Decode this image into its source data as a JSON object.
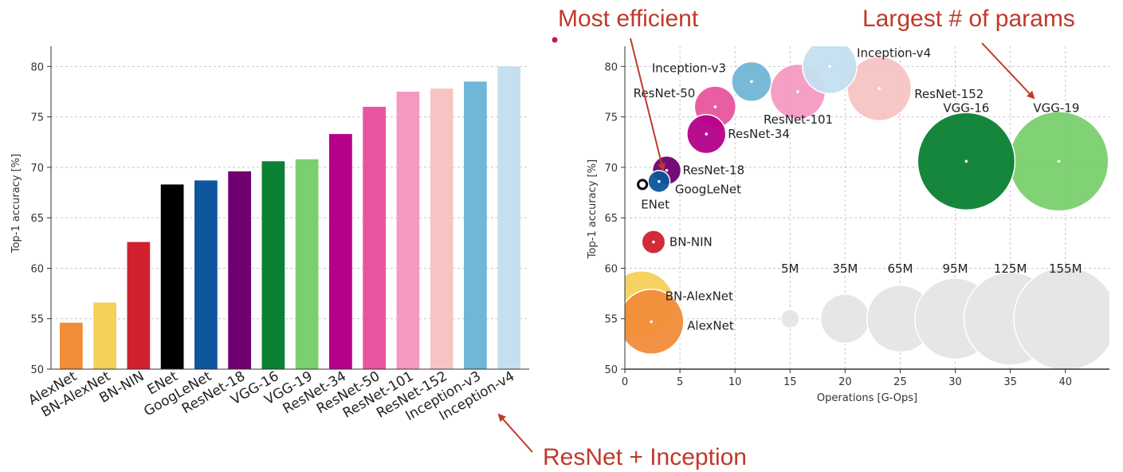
{
  "colors": {
    "annotation": "#c0392b",
    "arrow": "#c0392b",
    "reference_bubble": "#e6e6e6",
    "grid": "#c8c8c8"
  },
  "annotations": {
    "most_efficient": "Most efficient",
    "largest_params": "Largest # of params",
    "resnet_inception": "ResNet + Inception"
  },
  "chart_data": [
    {
      "type": "bar",
      "title": "",
      "xlabel": "",
      "ylabel": "Top-1 accuracy [%]",
      "ylim": [
        50,
        82
      ],
      "yticks": [
        50,
        55,
        60,
        65,
        70,
        75,
        80
      ],
      "grid": true,
      "categories": [
        "AlexNet",
        "BN-AlexNet",
        "BN-NIN",
        "ENet",
        "GoogLeNet",
        "ResNet-18",
        "VGG-16",
        "VGG-19",
        "ResNet-34",
        "ResNet-50",
        "ResNet-101",
        "ResNet-152",
        "Inception-v3",
        "Inception-v4"
      ],
      "values": [
        54.6,
        56.6,
        62.6,
        68.3,
        68.7,
        69.6,
        70.6,
        70.8,
        73.3,
        76.0,
        77.5,
        77.8,
        78.5,
        80.0
      ],
      "colors": [
        "#f28c38",
        "#f5d05a",
        "#d0202e",
        "#000000",
        "#0d569b",
        "#6f006f",
        "#0a8033",
        "#7ad06e",
        "#b5008a",
        "#e8559e",
        "#f49ac1",
        "#f7c4c4",
        "#70b6d6",
        "#c5dff0"
      ]
    },
    {
      "type": "scatter",
      "title": "",
      "xlabel": "Operations [G-Ops]",
      "ylabel": "Top-1 accuracy [%]",
      "xlim": [
        0,
        44
      ],
      "ylim": [
        50,
        82
      ],
      "xticks": [
        0,
        5,
        10,
        15,
        20,
        25,
        30,
        35,
        40
      ],
      "yticks": [
        50,
        55,
        60,
        65,
        70,
        75,
        80
      ],
      "grid": true,
      "points": [
        {
          "name": "AlexNet",
          "x": 2.4,
          "y": 54.7,
          "params_m": 61,
          "color": "#f28c38"
        },
        {
          "name": "BN-AlexNet",
          "x": 1.5,
          "y": 56.5,
          "params_m": 62,
          "color": "#f5d05a"
        },
        {
          "name": "BN-NIN",
          "x": 2.6,
          "y": 62.6,
          "params_m": 8,
          "color": "#d0202e"
        },
        {
          "name": "ENet",
          "x": 1.6,
          "y": 68.3,
          "params_m": 0.4,
          "color": "#000000"
        },
        {
          "name": "GoogLeNet",
          "x": 3.1,
          "y": 68.6,
          "params_m": 7,
          "color": "#0d569b"
        },
        {
          "name": "ResNet-18",
          "x": 3.8,
          "y": 69.7,
          "params_m": 12,
          "color": "#6f006f"
        },
        {
          "name": "ResNet-34",
          "x": 7.4,
          "y": 73.3,
          "params_m": 22,
          "color": "#b5008a"
        },
        {
          "name": "ResNet-50",
          "x": 8.2,
          "y": 76.0,
          "params_m": 25,
          "color": "#e8559e"
        },
        {
          "name": "ResNet-101",
          "x": 15.7,
          "y": 77.5,
          "params_m": 44,
          "color": "#f49ac1"
        },
        {
          "name": "ResNet-152",
          "x": 23.1,
          "y": 77.8,
          "params_m": 60,
          "color": "#f7c4c4"
        },
        {
          "name": "Inception-v3",
          "x": 11.5,
          "y": 78.5,
          "params_m": 23,
          "color": "#70b6d6"
        },
        {
          "name": "Inception-v4",
          "x": 18.6,
          "y": 80.0,
          "params_m": 43,
          "color": "#c5dff0"
        },
        {
          "name": "VGG-16",
          "x": 31.0,
          "y": 70.6,
          "params_m": 138,
          "color": "#0a8033"
        },
        {
          "name": "VGG-19",
          "x": 39.4,
          "y": 70.6,
          "params_m": 144,
          "color": "#7ad06e"
        }
      ],
      "size_legend": [
        {
          "label": "5M",
          "x": 15,
          "params_m": 5
        },
        {
          "label": "35M",
          "x": 20,
          "params_m": 35
        },
        {
          "label": "65M",
          "x": 25,
          "params_m": 65
        },
        {
          "label": "95M",
          "x": 30,
          "params_m": 95
        },
        {
          "label": "125M",
          "x": 35,
          "params_m": 125
        },
        {
          "label": "155M",
          "x": 40,
          "params_m": 155
        }
      ],
      "size_legend_y": 55
    }
  ]
}
